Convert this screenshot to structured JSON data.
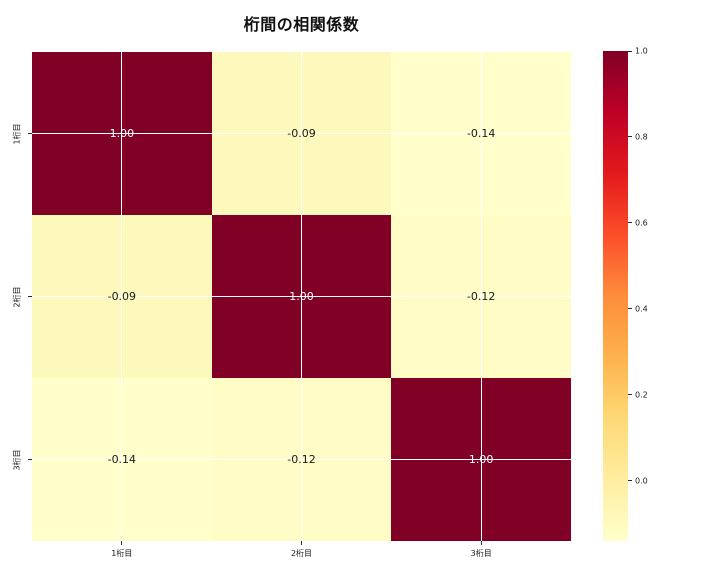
{
  "title": "桁間の相関係数",
  "chart_data": {
    "type": "heatmap",
    "title": "桁間の相関係数",
    "categories": [
      "1桁目",
      "2桁目",
      "3桁目"
    ],
    "x_tick_labels": [
      "1桁目",
      "2桁目",
      "3桁目"
    ],
    "y_tick_labels": [
      "1桁目",
      "2桁目",
      "3桁目"
    ],
    "matrix": [
      [
        1.0,
        -0.09,
        -0.14
      ],
      [
        -0.09,
        1.0,
        -0.12
      ],
      [
        -0.14,
        -0.12,
        1.0
      ]
    ],
    "cell_labels": [
      [
        "1.00",
        "-0.09",
        "-0.14"
      ],
      [
        "-0.09",
        "1.00",
        "-0.12"
      ],
      [
        "-0.14",
        "-0.12",
        "1.00"
      ]
    ],
    "cell_colors": [
      [
        "#800026",
        "#fdf8bc",
        "#ffffcc"
      ],
      [
        "#fdf8bc",
        "#800026",
        "#fffcc5"
      ],
      [
        "#ffffcc",
        "#fffcc5",
        "#800026"
      ]
    ],
    "cell_text_colors": [
      [
        "#ffffff",
        "#1a1a1a",
        "#1a1a1a"
      ],
      [
        "#1a1a1a",
        "#ffffff",
        "#1a1a1a"
      ],
      [
        "#1a1a1a",
        "#1a1a1a",
        "#ffffff"
      ]
    ],
    "colormap": "YlOrRd",
    "vmin": -0.14,
    "vmax": 1.0,
    "grid": true,
    "gridline_color": "#ffffff",
    "colorbar": {
      "position": "right",
      "ticks": [
        {
          "label": "1.0",
          "value": 1.0
        },
        {
          "label": "0.8",
          "value": 0.8
        },
        {
          "label": "0.6",
          "value": 0.6
        },
        {
          "label": "0.4",
          "value": 0.4
        },
        {
          "label": "0.2",
          "value": 0.2
        },
        {
          "label": "0.0",
          "value": 0.0
        }
      ],
      "gradient_stops_top_to_bottom": [
        {
          "pos": 0.0,
          "color": "#800026"
        },
        {
          "pos": 0.125,
          "color": "#bd0026"
        },
        {
          "pos": 0.25,
          "color": "#e31a1c"
        },
        {
          "pos": 0.375,
          "color": "#fc4e2a"
        },
        {
          "pos": 0.5,
          "color": "#fd8d3c"
        },
        {
          "pos": 0.625,
          "color": "#feb24c"
        },
        {
          "pos": 0.75,
          "color": "#fed976"
        },
        {
          "pos": 0.875,
          "color": "#ffeda0"
        },
        {
          "pos": 1.0,
          "color": "#ffffcc"
        }
      ]
    }
  }
}
